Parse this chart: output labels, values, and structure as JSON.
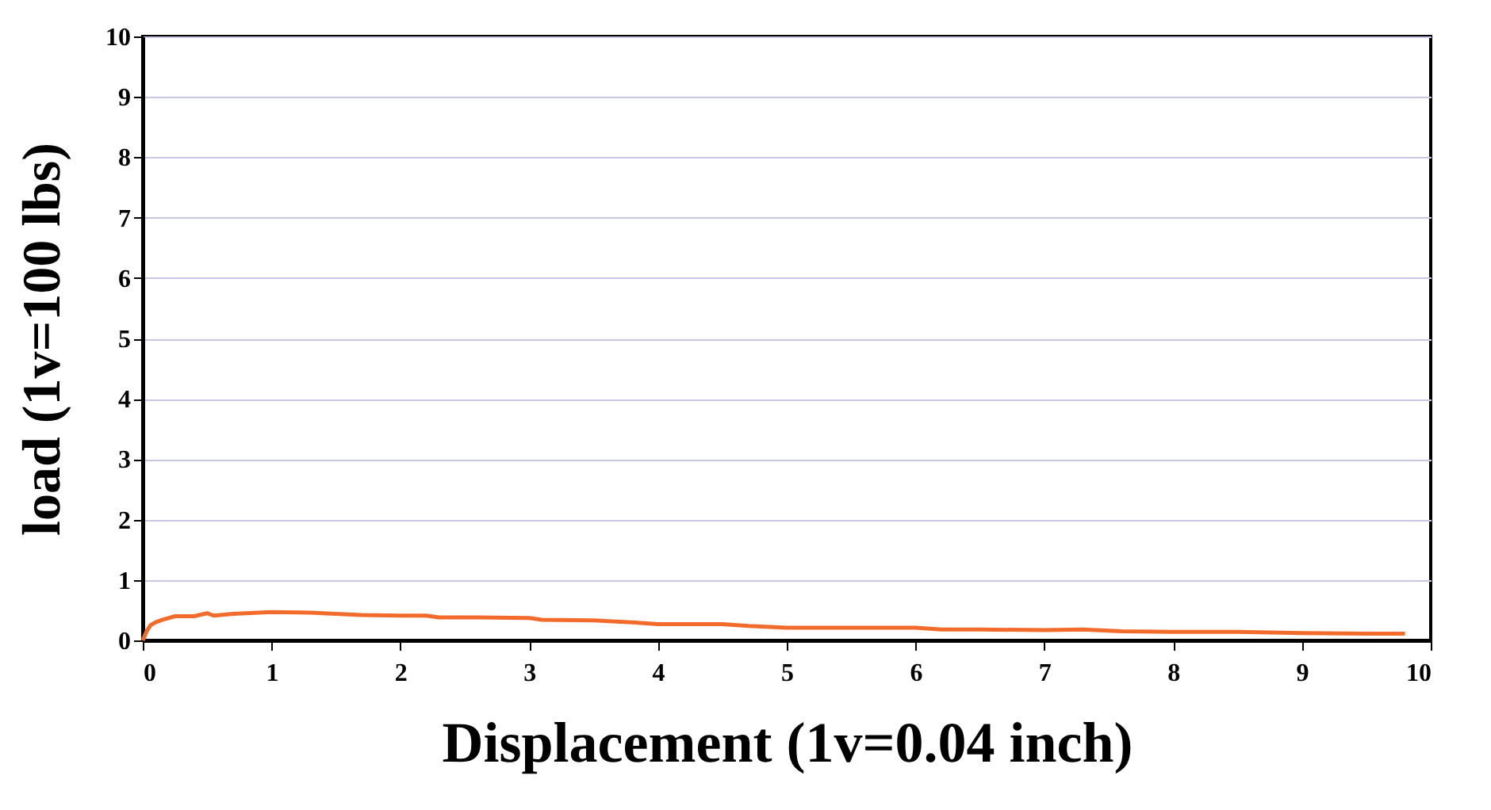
{
  "chart_data": {
    "type": "line",
    "xlabel": "Displacement (1v=0.04 inch)",
    "ylabel": "load (1v=100 lbs)",
    "series": [
      {
        "color": "#f26b2a",
        "x": [
          0,
          0.03,
          0.06,
          0.1,
          0.15,
          0.25,
          0.4,
          0.5,
          0.55,
          0.7,
          0.8,
          1.0,
          1.3,
          1.5,
          1.7,
          2.0,
          2.2,
          2.3,
          2.6,
          3.0,
          3.1,
          3.5,
          3.8,
          4.0,
          4.5,
          4.7,
          5.0,
          5.5,
          6.0,
          6.2,
          6.5,
          7.0,
          7.3,
          7.6,
          8.0,
          8.5,
          9.0,
          9.5,
          9.8
        ],
        "values": [
          0,
          0.15,
          0.25,
          0.3,
          0.34,
          0.4,
          0.4,
          0.45,
          0.41,
          0.44,
          0.45,
          0.47,
          0.46,
          0.44,
          0.42,
          0.41,
          0.41,
          0.38,
          0.38,
          0.37,
          0.34,
          0.33,
          0.3,
          0.27,
          0.27,
          0.24,
          0.21,
          0.21,
          0.21,
          0.18,
          0.18,
          0.17,
          0.18,
          0.15,
          0.14,
          0.14,
          0.12,
          0.11,
          0.11
        ]
      }
    ],
    "xlim": [
      0,
      10
    ],
    "xticks": [
      0,
      1,
      2,
      3,
      4,
      5,
      6,
      7,
      8,
      9,
      10
    ],
    "ylim": [
      0,
      10
    ],
    "yticks": [
      0,
      1,
      2,
      3,
      4,
      5,
      6,
      7,
      8,
      9,
      10
    ],
    "grid": "y",
    "legend": false,
    "marker": "none",
    "line_style": "solid"
  }
}
